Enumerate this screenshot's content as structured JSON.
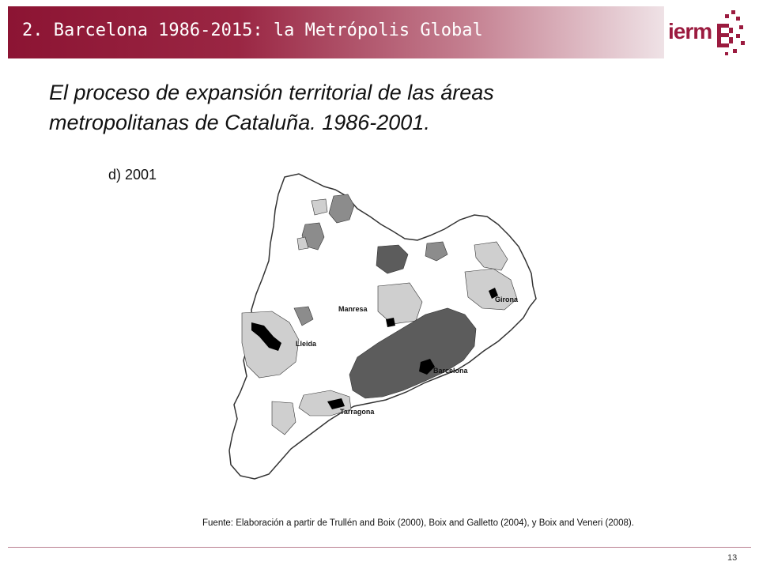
{
  "header": {
    "title": "2. Barcelona 1986-2015: la Metrópolis Global",
    "logo_text": "ierm"
  },
  "slide": {
    "headline_line1": "El proceso de expansión territorial de las áreas",
    "headline_line2": "metropolitanas de Cataluña. 1986-2001.",
    "panel_label": "d) 2001",
    "source": "Fuente: Elaboración a partir de Trullén and Boix (2000), Boix and Galletto (2004), y Boix and Veneri (2008).",
    "page_number": "13"
  },
  "map": {
    "cities": {
      "manresa": "Manresa",
      "lleida": "Lleida",
      "girona": "Girona",
      "barcelona": "Barcelona",
      "tarragona": "Tarragona"
    },
    "colors": {
      "outline": "#333333",
      "dark": "#5c5c5c",
      "mid": "#8c8c8c",
      "light": "#cfcfcf",
      "center": "#000000",
      "land": "#ffffff"
    }
  }
}
